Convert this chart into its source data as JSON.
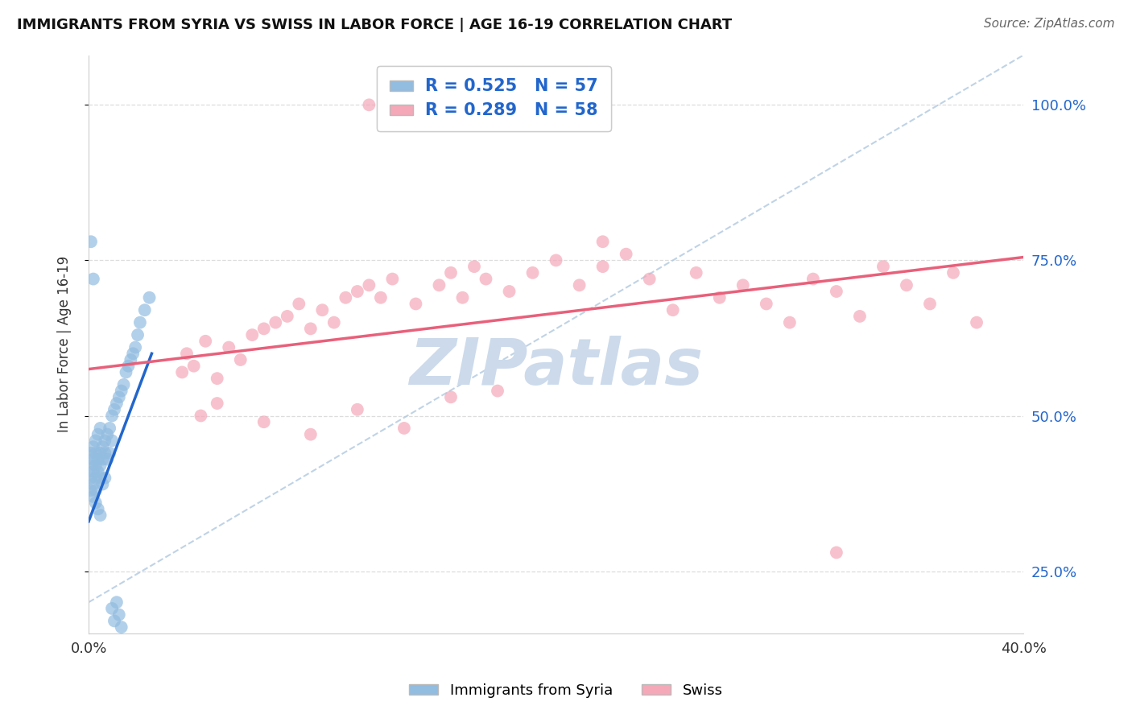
{
  "title": "IMMIGRANTS FROM SYRIA VS SWISS IN LABOR FORCE | AGE 16-19 CORRELATION CHART",
  "source": "Source: ZipAtlas.com",
  "ylabel": "In Labor Force | Age 16-19",
  "xlim": [
    0.0,
    0.4
  ],
  "ylim": [
    0.15,
    1.08
  ],
  "xtick_positions": [
    0.0,
    0.08,
    0.16,
    0.24,
    0.32,
    0.4
  ],
  "xtick_labels": [
    "0.0%",
    "",
    "",
    "",
    "",
    "40.0%"
  ],
  "ytick_vals_right": [
    0.25,
    0.5,
    0.75,
    1.0
  ],
  "ytick_labels_right": [
    "25.0%",
    "50.0%",
    "75.0%",
    "100.0%"
  ],
  "syria_color": "#92bce0",
  "swiss_color": "#f4a8b8",
  "syria_line_color": "#2266cc",
  "swiss_line_color": "#e8607a",
  "ref_line_color": "#b0c8e0",
  "legend_R_syria": "0.525",
  "legend_N_syria": "57",
  "legend_R_swiss": "0.289",
  "legend_N_swiss": "58",
  "watermark": "ZIPatlas",
  "watermark_color": "#ccdaeb",
  "background_color": "#ffffff",
  "grid_color": "#dddddd",
  "syria_x": [
    0.001,
    0.001,
    0.001,
    0.001,
    0.002,
    0.002,
    0.002,
    0.002,
    0.002,
    0.003,
    0.003,
    0.003,
    0.003,
    0.003,
    0.003,
    0.004,
    0.004,
    0.004,
    0.004,
    0.005,
    0.005,
    0.005,
    0.005,
    0.005,
    0.006,
    0.006,
    0.006,
    0.007,
    0.007,
    0.007,
    0.008,
    0.008,
    0.009,
    0.009,
    0.01,
    0.01,
    0.011,
    0.012,
    0.013,
    0.014,
    0.015,
    0.016,
    0.017,
    0.018,
    0.019,
    0.02,
    0.021,
    0.022,
    0.024,
    0.026,
    0.01,
    0.011,
    0.012,
    0.013,
    0.014,
    0.001,
    0.002
  ],
  "syria_y": [
    0.4,
    0.42,
    0.38,
    0.44,
    0.41,
    0.43,
    0.39,
    0.45,
    0.37,
    0.42,
    0.4,
    0.44,
    0.38,
    0.46,
    0.36,
    0.43,
    0.41,
    0.47,
    0.35,
    0.44,
    0.42,
    0.4,
    0.48,
    0.34,
    0.45,
    0.43,
    0.39,
    0.46,
    0.44,
    0.4,
    0.47,
    0.43,
    0.48,
    0.44,
    0.5,
    0.46,
    0.51,
    0.52,
    0.53,
    0.54,
    0.55,
    0.57,
    0.58,
    0.59,
    0.6,
    0.61,
    0.63,
    0.65,
    0.67,
    0.69,
    0.19,
    0.17,
    0.2,
    0.18,
    0.16,
    0.78,
    0.72
  ],
  "swiss_x": [
    0.04,
    0.042,
    0.045,
    0.05,
    0.055,
    0.06,
    0.065,
    0.07,
    0.075,
    0.08,
    0.085,
    0.09,
    0.095,
    0.1,
    0.105,
    0.11,
    0.115,
    0.12,
    0.125,
    0.13,
    0.14,
    0.15,
    0.155,
    0.16,
    0.165,
    0.17,
    0.18,
    0.19,
    0.2,
    0.21,
    0.22,
    0.23,
    0.24,
    0.25,
    0.26,
    0.27,
    0.28,
    0.29,
    0.3,
    0.31,
    0.32,
    0.33,
    0.34,
    0.35,
    0.36,
    0.37,
    0.38,
    0.12,
    0.22,
    0.32,
    0.048,
    0.055,
    0.075,
    0.095,
    0.115,
    0.135,
    0.155,
    0.175
  ],
  "swiss_y": [
    0.57,
    0.6,
    0.58,
    0.62,
    0.56,
    0.61,
    0.59,
    0.63,
    0.64,
    0.65,
    0.66,
    0.68,
    0.64,
    0.67,
    0.65,
    0.69,
    0.7,
    0.71,
    0.69,
    0.72,
    0.68,
    0.71,
    0.73,
    0.69,
    0.74,
    0.72,
    0.7,
    0.73,
    0.75,
    0.71,
    0.74,
    0.76,
    0.72,
    0.67,
    0.73,
    0.69,
    0.71,
    0.68,
    0.65,
    0.72,
    0.7,
    0.66,
    0.74,
    0.71,
    0.68,
    0.73,
    0.65,
    1.0,
    0.78,
    0.28,
    0.5,
    0.52,
    0.49,
    0.47,
    0.51,
    0.48,
    0.53,
    0.54
  ],
  "syria_trend_x0": 0.0,
  "syria_trend_x1": 0.027,
  "syria_trend_y0": 0.33,
  "syria_trend_y1": 0.6,
  "swiss_trend_x0": 0.0,
  "swiss_trend_x1": 0.4,
  "swiss_trend_y0": 0.575,
  "swiss_trend_y1": 0.755,
  "ref_line_x0": 0.0,
  "ref_line_y0": 0.2,
  "ref_line_x1": 0.4,
  "ref_line_y1": 1.08
}
